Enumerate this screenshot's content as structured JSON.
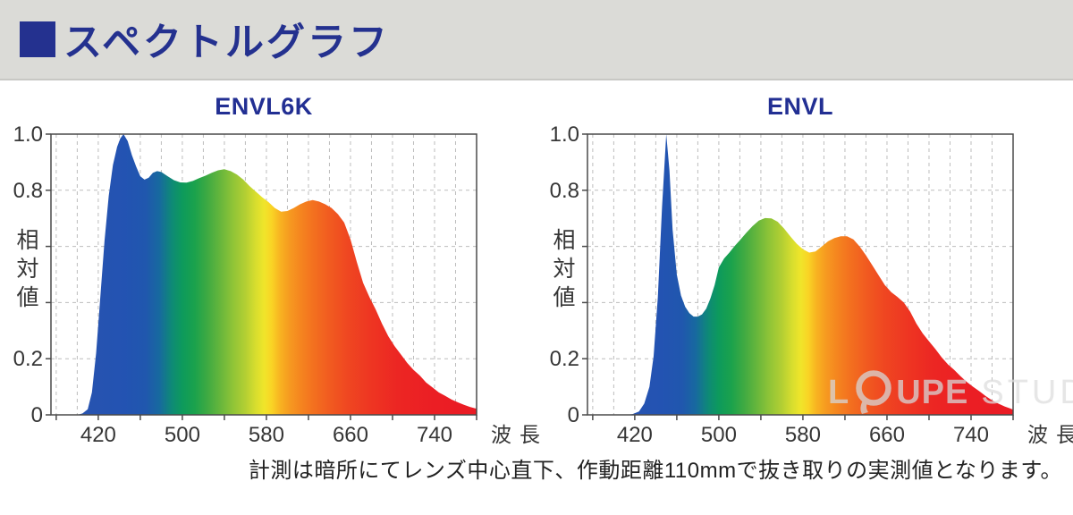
{
  "header": {
    "title": "スペクトルグラフ"
  },
  "caption": "計測は暗所にてレンズ中心直下、作動距離110mmで抜き取りの実測値となります。",
  "watermark": {
    "l": "L",
    "upe": "UPE",
    "studio": "STUDIO",
    "logo": "loupe-ring-icon"
  },
  "colors": {
    "header_bg": "#dbdbd7",
    "accent_navy": "#24318f",
    "chart_title_navy": "#222f93",
    "axis": "#4a4a4a",
    "grid": "#bdbdbd",
    "tick_text": "#363636",
    "watermark_gray": "#d6d6d6"
  },
  "spectrum_stops": [
    {
      "nm": 375,
      "color": "#2b53ae"
    },
    {
      "nm": 445,
      "color": "#2353b2"
    },
    {
      "nm": 465,
      "color": "#2057ae"
    },
    {
      "nm": 478,
      "color": "#17699f"
    },
    {
      "nm": 490,
      "color": "#0e8a76"
    },
    {
      "nm": 500,
      "color": "#0d9a5c"
    },
    {
      "nm": 512,
      "color": "#1ba24c"
    },
    {
      "nm": 524,
      "color": "#3faa42"
    },
    {
      "nm": 536,
      "color": "#66b63c"
    },
    {
      "nm": 548,
      "color": "#8fc437"
    },
    {
      "nm": 560,
      "color": "#b3cf33"
    },
    {
      "nm": 570,
      "color": "#d8de2e"
    },
    {
      "nm": 578,
      "color": "#f0e52a"
    },
    {
      "nm": 585,
      "color": "#f9d425"
    },
    {
      "nm": 593,
      "color": "#f8b321"
    },
    {
      "nm": 602,
      "color": "#f69a20"
    },
    {
      "nm": 612,
      "color": "#f5861f"
    },
    {
      "nm": 625,
      "color": "#f3701f"
    },
    {
      "nm": 640,
      "color": "#f15b20"
    },
    {
      "nm": 658,
      "color": "#ef4621"
    },
    {
      "nm": 680,
      "color": "#ee3522"
    },
    {
      "nm": 705,
      "color": "#ec2623"
    },
    {
      "nm": 740,
      "color": "#eb1e24"
    },
    {
      "nm": 780,
      "color": "#ea1b24"
    }
  ],
  "chart_data": [
    {
      "type": "area",
      "title": "ENVL6K",
      "x_label": "波長",
      "y_label": "相対値",
      "x_range": [
        375,
        780
      ],
      "y_range": [
        0,
        1
      ],
      "x_grid_step": 20,
      "x_tick_step": 40,
      "y_grid_step": 0.2,
      "x_ticks": [
        {
          "nm": 420,
          "label": "420"
        },
        {
          "nm": 500,
          "label": "500"
        },
        {
          "nm": 580,
          "label": "580"
        },
        {
          "nm": 660,
          "label": "660"
        },
        {
          "nm": 740,
          "label": "740"
        }
      ],
      "y_ticks": [
        {
          "v": 1.0,
          "label": "1.0"
        },
        {
          "v": 0.8,
          "label": "0.8"
        },
        {
          "v": 0.2,
          "label": "0.2"
        },
        {
          "v": 0,
          "label": "0"
        }
      ],
      "series": [
        [
          375,
          0
        ],
        [
          400,
          0
        ],
        [
          405,
          0.005
        ],
        [
          410,
          0.02
        ],
        [
          414,
          0.08
        ],
        [
          418,
          0.22
        ],
        [
          422,
          0.42
        ],
        [
          426,
          0.62
        ],
        [
          430,
          0.78
        ],
        [
          434,
          0.89
        ],
        [
          438,
          0.955
        ],
        [
          441,
          0.985
        ],
        [
          444,
          1.0
        ],
        [
          448,
          0.975
        ],
        [
          452,
          0.925
        ],
        [
          456,
          0.885
        ],
        [
          460,
          0.85
        ],
        [
          464,
          0.838
        ],
        [
          468,
          0.845
        ],
        [
          472,
          0.862
        ],
        [
          476,
          0.868
        ],
        [
          480,
          0.865
        ],
        [
          486,
          0.85
        ],
        [
          492,
          0.836
        ],
        [
          498,
          0.828
        ],
        [
          504,
          0.827
        ],
        [
          510,
          0.833
        ],
        [
          516,
          0.843
        ],
        [
          522,
          0.852
        ],
        [
          528,
          0.862
        ],
        [
          534,
          0.871
        ],
        [
          540,
          0.875
        ],
        [
          546,
          0.868
        ],
        [
          552,
          0.856
        ],
        [
          558,
          0.838
        ],
        [
          564,
          0.815
        ],
        [
          570,
          0.795
        ],
        [
          576,
          0.775
        ],
        [
          582,
          0.758
        ],
        [
          588,
          0.737
        ],
        [
          594,
          0.724
        ],
        [
          600,
          0.726
        ],
        [
          606,
          0.737
        ],
        [
          612,
          0.75
        ],
        [
          618,
          0.76
        ],
        [
          624,
          0.765
        ],
        [
          630,
          0.76
        ],
        [
          636,
          0.75
        ],
        [
          642,
          0.737
        ],
        [
          648,
          0.715
        ],
        [
          654,
          0.685
        ],
        [
          660,
          0.625
        ],
        [
          666,
          0.545
        ],
        [
          672,
          0.47
        ],
        [
          678,
          0.42
        ],
        [
          684,
          0.375
        ],
        [
          690,
          0.325
        ],
        [
          696,
          0.28
        ],
        [
          702,
          0.245
        ],
        [
          708,
          0.215
        ],
        [
          714,
          0.185
        ],
        [
          720,
          0.16
        ],
        [
          726,
          0.14
        ],
        [
          732,
          0.115
        ],
        [
          738,
          0.098
        ],
        [
          744,
          0.08
        ],
        [
          750,
          0.068
        ],
        [
          756,
          0.055
        ],
        [
          762,
          0.045
        ],
        [
          768,
          0.036
        ],
        [
          774,
          0.028
        ],
        [
          780,
          0.022
        ]
      ]
    },
    {
      "type": "area",
      "title": "ENVL",
      "x_label": "波長",
      "y_label": "相対値",
      "x_range": [
        375,
        780
      ],
      "y_range": [
        0,
        1
      ],
      "x_grid_step": 20,
      "x_tick_step": 40,
      "y_grid_step": 0.2,
      "x_ticks": [
        {
          "nm": 420,
          "label": "420"
        },
        {
          "nm": 500,
          "label": "500"
        },
        {
          "nm": 580,
          "label": "580"
        },
        {
          "nm": 660,
          "label": "660"
        },
        {
          "nm": 740,
          "label": "740"
        }
      ],
      "y_ticks": [
        {
          "v": 1.0,
          "label": "1.0"
        },
        {
          "v": 0.8,
          "label": "0.8"
        },
        {
          "v": 0.2,
          "label": "0.2"
        },
        {
          "v": 0,
          "label": "0"
        }
      ],
      "series": [
        [
          375,
          0
        ],
        [
          412,
          0
        ],
        [
          418,
          0.003
        ],
        [
          424,
          0.012
        ],
        [
          429,
          0.04
        ],
        [
          434,
          0.1
        ],
        [
          438,
          0.21
        ],
        [
          442,
          0.42
        ],
        [
          446,
          0.74
        ],
        [
          450,
          1.0
        ],
        [
          453,
          0.87
        ],
        [
          456,
          0.66
        ],
        [
          460,
          0.5
        ],
        [
          464,
          0.425
        ],
        [
          468,
          0.385
        ],
        [
          472,
          0.362
        ],
        [
          476,
          0.35
        ],
        [
          480,
          0.35
        ],
        [
          484,
          0.358
        ],
        [
          488,
          0.378
        ],
        [
          492,
          0.415
        ],
        [
          496,
          0.462
        ],
        [
          500,
          0.525
        ],
        [
          505,
          0.557
        ],
        [
          510,
          0.578
        ],
        [
          515,
          0.601
        ],
        [
          520,
          0.622
        ],
        [
          526,
          0.648
        ],
        [
          532,
          0.672
        ],
        [
          538,
          0.692
        ],
        [
          544,
          0.701
        ],
        [
          550,
          0.7
        ],
        [
          556,
          0.688
        ],
        [
          562,
          0.664
        ],
        [
          568,
          0.636
        ],
        [
          574,
          0.61
        ],
        [
          580,
          0.59
        ],
        [
          586,
          0.578
        ],
        [
          592,
          0.582
        ],
        [
          598,
          0.6
        ],
        [
          604,
          0.618
        ],
        [
          610,
          0.63
        ],
        [
          616,
          0.636
        ],
        [
          622,
          0.636
        ],
        [
          628,
          0.625
        ],
        [
          634,
          0.6
        ],
        [
          640,
          0.568
        ],
        [
          646,
          0.533
        ],
        [
          652,
          0.497
        ],
        [
          658,
          0.462
        ],
        [
          664,
          0.437
        ],
        [
          670,
          0.42
        ],
        [
          676,
          0.4
        ],
        [
          682,
          0.368
        ],
        [
          688,
          0.325
        ],
        [
          694,
          0.29
        ],
        [
          700,
          0.262
        ],
        [
          706,
          0.235
        ],
        [
          712,
          0.205
        ],
        [
          718,
          0.18
        ],
        [
          724,
          0.16
        ],
        [
          730,
          0.138
        ],
        [
          736,
          0.117
        ],
        [
          742,
          0.1
        ],
        [
          748,
          0.084
        ],
        [
          754,
          0.067
        ],
        [
          760,
          0.052
        ],
        [
          766,
          0.04
        ],
        [
          772,
          0.03
        ],
        [
          778,
          0.022
        ],
        [
          780,
          0.018
        ]
      ]
    }
  ]
}
